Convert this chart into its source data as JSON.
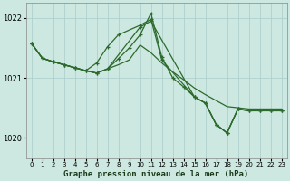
{
  "background_color": "#cce8e0",
  "grid_color": "#aacccc",
  "line_color": "#2d6a2d",
  "title": "Graphe pression niveau de la mer (hPa)",
  "ylim": [
    1019.65,
    1022.25
  ],
  "xlim": [
    -0.5,
    23.5
  ],
  "yticks": [
    1020,
    1021,
    1022
  ],
  "xticks": [
    0,
    1,
    2,
    3,
    4,
    5,
    6,
    7,
    8,
    9,
    10,
    11,
    12,
    13,
    14,
    15,
    16,
    17,
    18,
    19,
    20,
    21,
    22,
    23
  ],
  "series1_no_marker": {
    "x": [
      0,
      1,
      2,
      3,
      4,
      5,
      6,
      7,
      8,
      9,
      10,
      11,
      12,
      13,
      14,
      15,
      16,
      17,
      18,
      19,
      20,
      21,
      22,
      23
    ],
    "y": [
      1021.58,
      1021.33,
      1021.27,
      1021.22,
      1021.17,
      1021.12,
      1021.08,
      1021.15,
      1021.22,
      1021.3,
      1021.55,
      1021.42,
      1021.25,
      1021.1,
      1020.97,
      1020.83,
      1020.72,
      1020.62,
      1020.52,
      1020.5,
      1020.48,
      1020.48,
      1020.48,
      1020.48
    ]
  },
  "series2_marker_steep": {
    "x": [
      0,
      1,
      2,
      3,
      4,
      5,
      6,
      7,
      10,
      11,
      15,
      16,
      17,
      18,
      19,
      20,
      21,
      22,
      23
    ],
    "y": [
      1021.58,
      1021.33,
      1021.27,
      1021.22,
      1021.17,
      1021.12,
      1021.08,
      1021.15,
      1021.85,
      1021.95,
      1020.68,
      1020.58,
      1020.22,
      1020.08,
      1020.48,
      1020.45,
      1020.45,
      1020.45,
      1020.45
    ]
  },
  "series3_marker_high": {
    "x": [
      0,
      1,
      2,
      3,
      4,
      5,
      6,
      7,
      8,
      10,
      11,
      12,
      15,
      16,
      17,
      18,
      19,
      20,
      21,
      22,
      23
    ],
    "y": [
      1021.58,
      1021.33,
      1021.27,
      1021.22,
      1021.17,
      1021.12,
      1021.25,
      1021.52,
      1021.72,
      1021.88,
      1021.98,
      1021.3,
      1020.68,
      1020.58,
      1020.22,
      1020.08,
      1020.48,
      1020.45,
      1020.45,
      1020.45,
      1020.45
    ]
  },
  "series4_marker_peak": {
    "x": [
      0,
      1,
      2,
      3,
      4,
      5,
      6,
      7,
      8,
      9,
      10,
      11,
      12,
      13,
      14,
      15,
      16,
      17,
      18,
      19,
      20,
      21,
      22,
      23
    ],
    "y": [
      1021.58,
      1021.33,
      1021.27,
      1021.22,
      1021.17,
      1021.12,
      1021.08,
      1021.15,
      1021.32,
      1021.5,
      1021.72,
      1022.08,
      1021.35,
      1021.0,
      1020.85,
      1020.68,
      1020.58,
      1020.22,
      1020.08,
      1020.48,
      1020.45,
      1020.45,
      1020.45,
      1020.45
    ]
  }
}
